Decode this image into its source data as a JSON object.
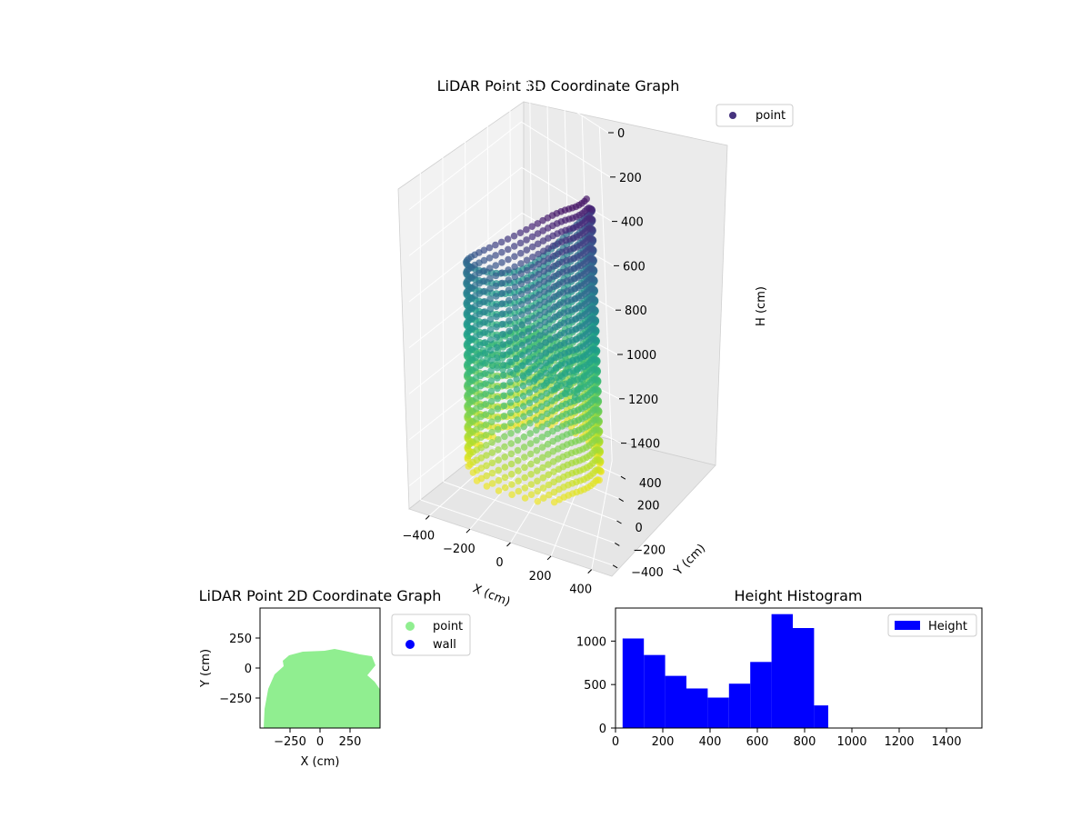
{
  "chart_data": [
    {
      "type": "scatter",
      "title": "LiDAR Point 3D Coordinate Graph",
      "xlabel": "X (cm)",
      "ylabel": "Y (cm)",
      "zlabel": "H (cm)",
      "xlim": [
        -500,
        500
      ],
      "ylim": [
        -500,
        500
      ],
      "zlim": [
        0,
        1500
      ],
      "z_inverted": true,
      "xticks": [
        -400,
        -200,
        0,
        200,
        400
      ],
      "yticks": [
        -400,
        -200,
        0,
        200,
        400
      ],
      "zticks": [
        0,
        200,
        400,
        600,
        800,
        1000,
        1200,
        1400
      ],
      "colormap": "viridis (by height)",
      "legend": {
        "placement": "top-right",
        "entries": [
          {
            "name": "point",
            "color": "#46337e"
          }
        ]
      },
      "grid": true
    },
    {
      "type": "scatter",
      "title": "LiDAR Point 2D Coordinate Graph",
      "xlabel": "X (cm)",
      "ylabel": "Y (cm)",
      "xlim": [
        -500,
        500
      ],
      "ylim": [
        -500,
        500
      ],
      "xticks": [
        "−250",
        "0",
        "250"
      ],
      "yticks": [
        "250",
        "0",
        "−250"
      ],
      "xtick_values": [
        -250,
        0,
        250
      ],
      "ytick_values": [
        250,
        0,
        -250
      ],
      "series": [
        {
          "name": "point",
          "color": "#90ee90"
        },
        {
          "name": "wall",
          "color": "#0000ff"
        }
      ],
      "legend": {
        "placement": "outside-right"
      },
      "grid": false
    },
    {
      "type": "bar",
      "title": "Height Histogram",
      "bin_edges": [
        30,
        120,
        210,
        300,
        390,
        480,
        570,
        660,
        750,
        840,
        900
      ],
      "values": [
        1030,
        840,
        600,
        455,
        350,
        510,
        760,
        1310,
        1150,
        260
      ],
      "xlim": [
        0,
        1550
      ],
      "ylim": [
        0,
        1380
      ],
      "xticks": [
        0,
        200,
        400,
        600,
        800,
        1000,
        1200,
        1400
      ],
      "yticks": [
        0,
        500,
        1000
      ],
      "color": "#0000ff",
      "legend": {
        "placement": "top-right",
        "entries": [
          {
            "name": "Height",
            "color": "#0000ff"
          }
        ]
      },
      "grid": false
    }
  ]
}
